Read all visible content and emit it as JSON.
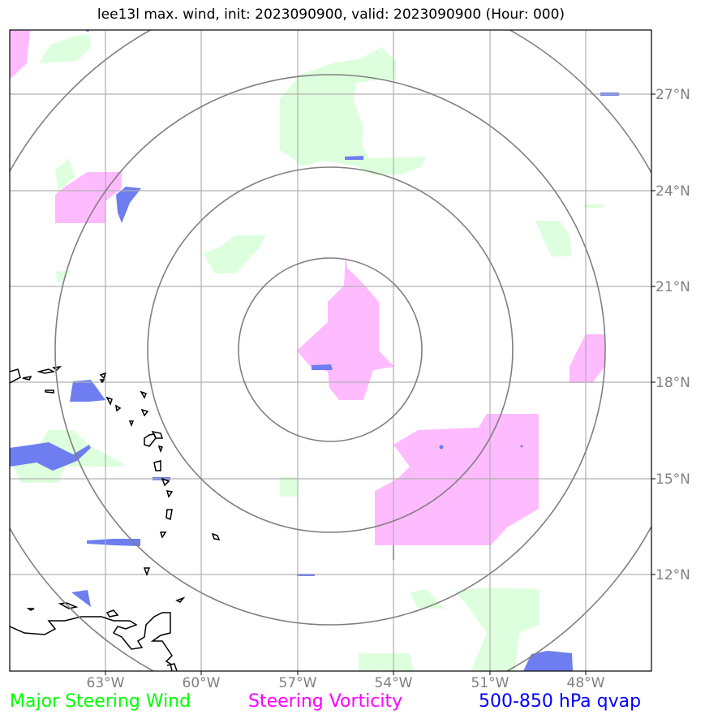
{
  "title": "lee13l max. wind, init: 2023090900, valid: 2023090900 (Hour: 000)",
  "lon_labels": [
    "63°W",
    "60°W",
    "57°W",
    "54°W",
    "51°W",
    "48°W"
  ],
  "lat_labels": [
    "27°N",
    "24°N",
    "21°N",
    "18°N",
    "15°N",
    "12°N"
  ],
  "legend": [
    {
      "label": "Major Steering Wind",
      "color": "#00ff00"
    },
    {
      "label": "Steering Vorticity",
      "color": "#ff00ff"
    },
    {
      "label": "500-850 hPa qvap",
      "color": "#0000ff"
    }
  ],
  "colors": {
    "wind_fill": "#ddffdd",
    "vorticity_fill": "#ffbbff",
    "qvap_fill": "#6e7df0",
    "range_rings": "#808080",
    "gridlines": "#b0b0b0",
    "coastline": "#000000"
  }
}
